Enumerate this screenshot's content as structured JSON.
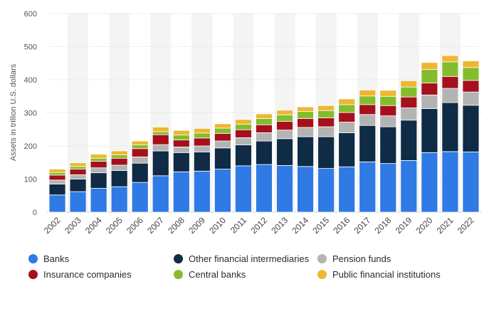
{
  "chart_data": {
    "type": "bar",
    "stacked": true,
    "title": "",
    "xlabel": "",
    "ylabel": "Assets in trillion U.S. dollars",
    "ylim": [
      0,
      600
    ],
    "yticks": [
      0,
      100,
      200,
      300,
      400,
      500,
      600
    ],
    "grid": true,
    "legend_position": "bottom",
    "categories": [
      "2002",
      "2003",
      "2004",
      "2005",
      "2006",
      "2007",
      "2008",
      "2009",
      "2010",
      "2011",
      "2012",
      "2013",
      "2014",
      "2015",
      "2016",
      "2017",
      "2018",
      "2019",
      "2020",
      "2021",
      "2022"
    ],
    "series": [
      {
        "name": "Banks",
        "color": "#2f7ae5",
        "values": [
          52,
          62,
          72,
          77,
          90,
          110,
          122,
          124,
          130,
          140,
          144,
          141,
          138,
          132,
          137,
          152,
          147,
          156,
          180,
          183,
          182
        ]
      },
      {
        "name": "Other financial intermediaries",
        "color": "#0f2b45",
        "values": [
          33,
          38,
          47,
          49,
          58,
          75,
          58,
          58,
          64,
          63,
          71,
          81,
          90,
          96,
          103,
          110,
          111,
          122,
          133,
          148,
          141
        ]
      },
      {
        "name": "Pension funds",
        "color": "#b3b3b3",
        "values": [
          12,
          13,
          15,
          16,
          19,
          19,
          17,
          18,
          21,
          22,
          25,
          26,
          28,
          30,
          32,
          33,
          33,
          37,
          41,
          43,
          40
        ]
      },
      {
        "name": "Insurance companies",
        "color": "#a6101c",
        "values": [
          15,
          17,
          20,
          21,
          25,
          30,
          21,
          24,
          23,
          24,
          24,
          26,
          27,
          27,
          29,
          30,
          31,
          33,
          36,
          36,
          35
        ]
      },
      {
        "name": "Central banks",
        "color": "#84bd2b",
        "values": [
          8,
          8,
          9,
          10,
          11,
          9,
          15,
          15,
          16,
          17,
          19,
          20,
          21,
          22,
          24,
          26,
          28,
          30,
          41,
          44,
          39
        ]
      },
      {
        "name": "Public financial institutions",
        "color": "#eeb72f",
        "values": [
          10,
          11,
          12,
          12,
          12,
          14,
          14,
          14,
          13,
          14,
          14,
          14,
          14,
          15,
          17,
          18,
          18,
          19,
          21,
          19,
          20
        ]
      }
    ]
  }
}
